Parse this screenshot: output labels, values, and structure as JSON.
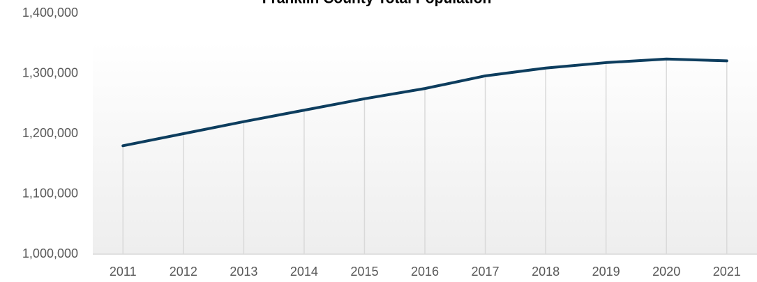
{
  "chart_data": {
    "type": "line",
    "title": "Franklin County Total Population",
    "categories": [
      "2011",
      "2012",
      "2013",
      "2014",
      "2015",
      "2016",
      "2017",
      "2018",
      "2019",
      "2020",
      "2021"
    ],
    "series": [
      {
        "name": "Total Population",
        "color": "#0d3d5e",
        "values": [
          1180000,
          1200000,
          1220000,
          1239000,
          1258000,
          1275000,
          1296000,
          1309000,
          1318000,
          1324000,
          1321000
        ]
      }
    ],
    "ylim": [
      1000000,
      1400000
    ],
    "yticks": [
      {
        "value": 1000000,
        "label": "1,000,000"
      },
      {
        "value": 1100000,
        "label": "1,100,000"
      },
      {
        "value": 1200000,
        "label": "1,200,000"
      },
      {
        "value": 1300000,
        "label": "1,300,000"
      },
      {
        "value": 1400000,
        "label": "1,400,000"
      }
    ],
    "grid": false,
    "drop_lines": true
  }
}
